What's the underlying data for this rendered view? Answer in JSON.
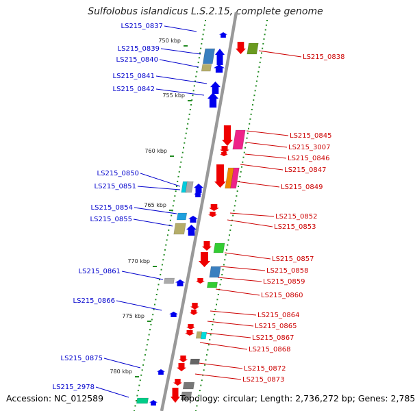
{
  "title": "Sulfolobus islandicus L.S.2.15, complete genome",
  "accession_text": "Accession: NC_012589",
  "topology_text": "Topology: circular; Length: 2,736,272 bp; Genes: 2,785",
  "colors": {
    "backbone": "#999999",
    "forward_label": "#0000cc",
    "reverse_label": "#cc0000",
    "tick": "#228b22"
  },
  "kbp_ticks": [
    "750 kbp",
    "755 kbp",
    "760 kbp",
    "765 kbp",
    "770 kbp",
    "775 kbp",
    "780 kbp"
  ],
  "left_labels": [
    "LS215_0837",
    "LS215_0839",
    "LS215_0840",
    "LS215_0841",
    "LS215_0842",
    "LS215_0850",
    "LS215_0851",
    "LS215_0854",
    "LS215_0855",
    "LS215_0861",
    "LS215_0866",
    "LS215_0875",
    "LS215_2978"
  ],
  "right_labels": [
    "LS215_0838",
    "LS215_0845",
    "LS215_3007",
    "LS215_0846",
    "LS215_0847",
    "LS215_0849",
    "LS215_0852",
    "LS215_0853",
    "LS215_0857",
    "LS215_0858",
    "LS215_0859",
    "LS215_0860",
    "LS215_0864",
    "LS215_0865",
    "LS215_0867",
    "LS215_0868",
    "LS215_0872",
    "LS215_0873"
  ]
}
